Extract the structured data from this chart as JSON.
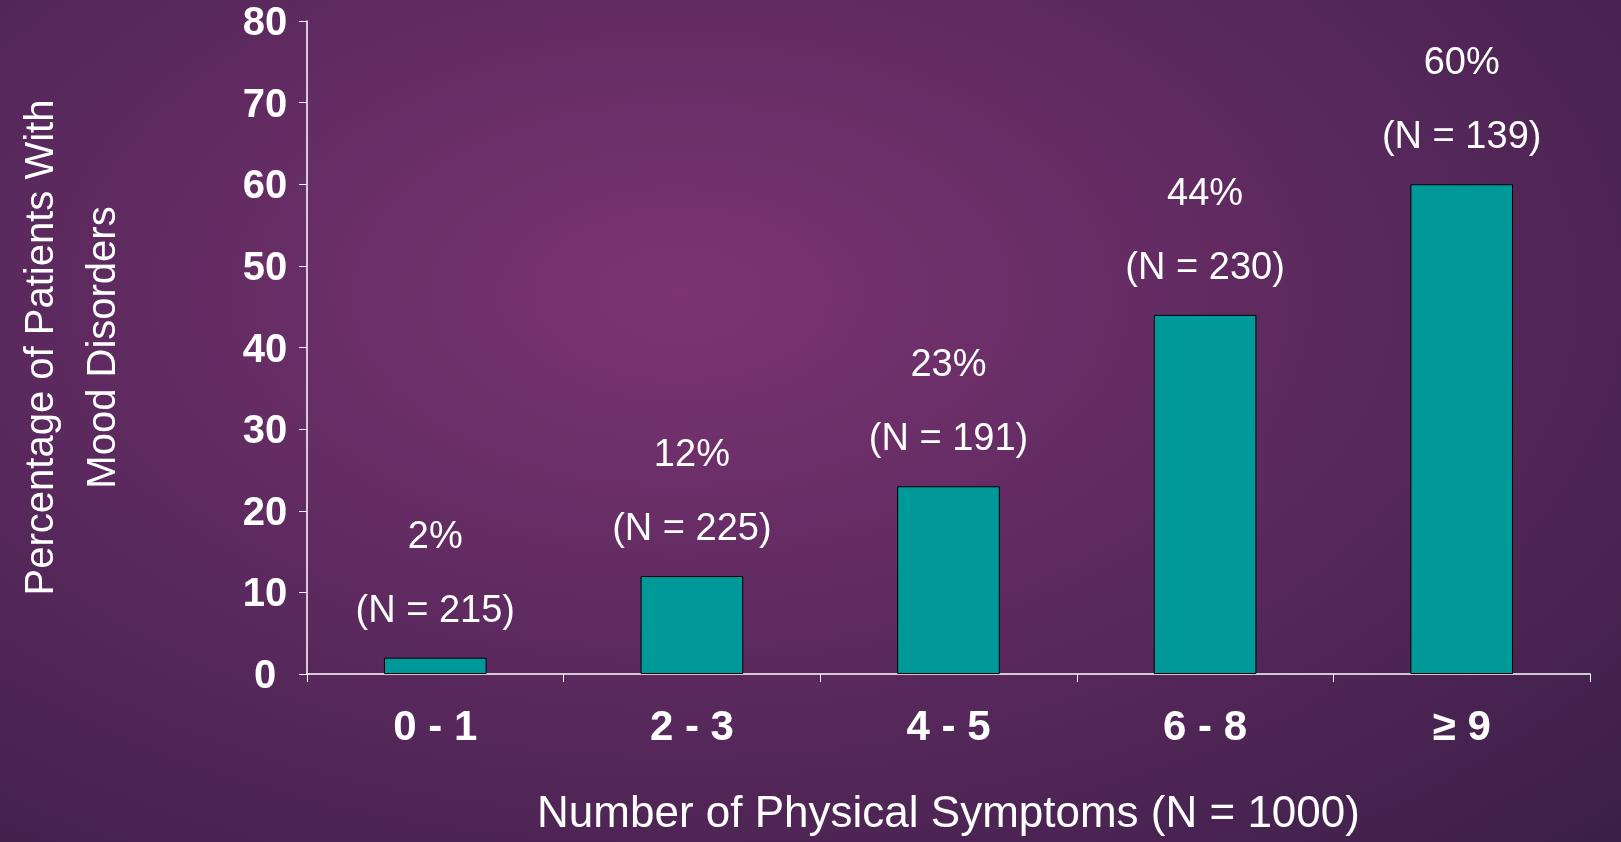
{
  "chart_data": {
    "type": "bar",
    "xlabel": "Number of Physical Symptoms (N = 1000)",
    "ylabel": "Percentage of Patients With\nMood Disorders",
    "categories": [
      "0 - 1",
      "2 - 3",
      "4 - 5",
      "6 - 8",
      "≥ 9"
    ],
    "values": [
      2,
      12,
      23,
      44,
      60
    ],
    "color": "#009999",
    "value_labels": [
      "2%\n(N = 215)",
      "12%\n(N = 225)",
      "23%\n(N = 191)",
      "44%\n(N = 230)",
      "60%\n(N = 139)"
    ],
    "ylim": [
      0,
      80
    ],
    "yticks": [
      0,
      10,
      20,
      30,
      40,
      50,
      60,
      70,
      80
    ],
    "grid": false
  }
}
